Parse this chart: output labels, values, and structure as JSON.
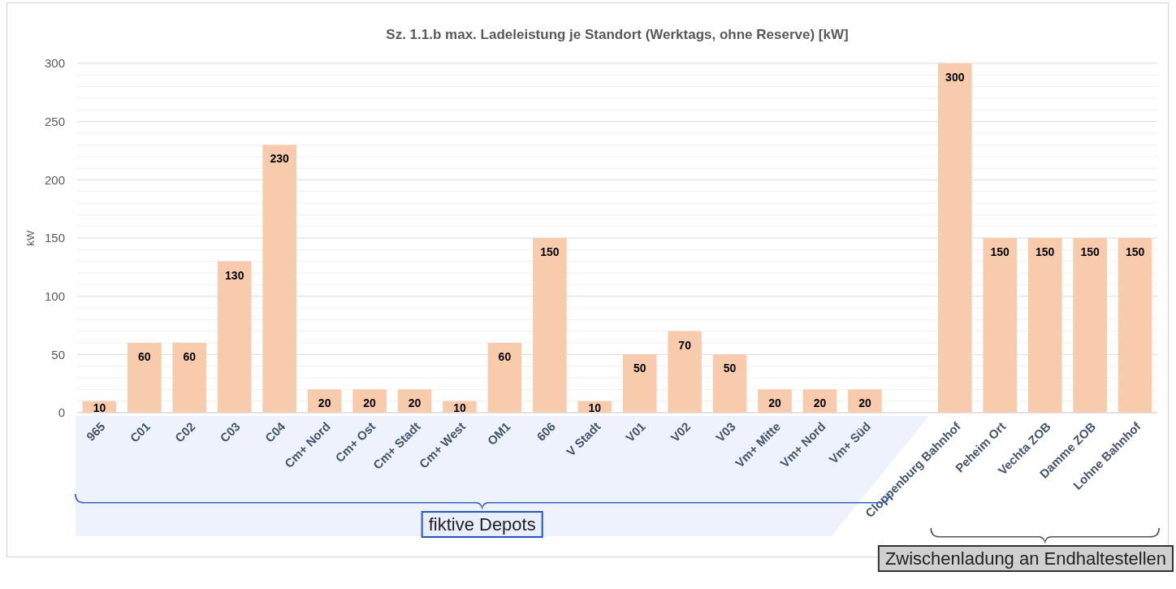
{
  "chart_data": {
    "type": "bar",
    "title": "Sz. 1.1.b max. Ladeleistung je Standort (Werktags, ohne Reserve) [kW]",
    "ylabel": "kW",
    "categories": [
      "965",
      "C01",
      "C02",
      "C03",
      "C04",
      "Cm+ Nord",
      "Cm+ Ost",
      "Cm+ Stadt",
      "Cm+ West",
      "OM1",
      "606",
      "V Stadt",
      "V01",
      "V02",
      "V03",
      "Vm+ Mitte",
      "Vm+ Nord",
      "Vm+ Süd",
      null,
      "Cloppenburg Bahnhof",
      "Peheim Ort",
      "Vechta ZOB",
      "Damme ZOB",
      "Lohne Bahnhof"
    ],
    "values": [
      10,
      60,
      60,
      130,
      230,
      20,
      20,
      20,
      10,
      60,
      150,
      10,
      50,
      70,
      50,
      20,
      20,
      20,
      null,
      300,
      150,
      150,
      150,
      150
    ],
    "color": "#f8cbad",
    "data_labels": true,
    "grid": "y",
    "ylim": [
      0,
      300
    ],
    "yticks": [
      0,
      {
        "value": 10,
        "label": null
      },
      {
        "value": 20,
        "label": null
      },
      {
        "value": 30,
        "label": null
      },
      {
        "value": 40,
        "label": null
      },
      50,
      {
        "value": 60,
        "label": null
      },
      {
        "value": 70,
        "label": null
      },
      {
        "value": 80,
        "label": null
      },
      {
        "value": 90,
        "label": null
      },
      100,
      {
        "value": 110,
        "label": null
      },
      {
        "value": 120,
        "label": null
      },
      {
        "value": 130,
        "label": null
      },
      {
        "value": 140,
        "label": null
      },
      150,
      {
        "value": 160,
        "label": null
      },
      {
        "value": 170,
        "label": null
      },
      {
        "value": 180,
        "label": null
      },
      {
        "value": 190,
        "label": null
      },
      200,
      {
        "value": 210,
        "label": null
      },
      {
        "value": 220,
        "label": null
      },
      {
        "value": 230,
        "label": null
      },
      {
        "value": 240,
        "label": null
      },
      250,
      {
        "value": 260,
        "label": null
      },
      {
        "value": 270,
        "label": null
      },
      {
        "value": 280,
        "label": null
      },
      {
        "value": 290,
        "label": null
      },
      300
    ],
    "annotations": [
      "fiktive Depots",
      "Zwischenladung an Endhaltestellen"
    ]
  }
}
